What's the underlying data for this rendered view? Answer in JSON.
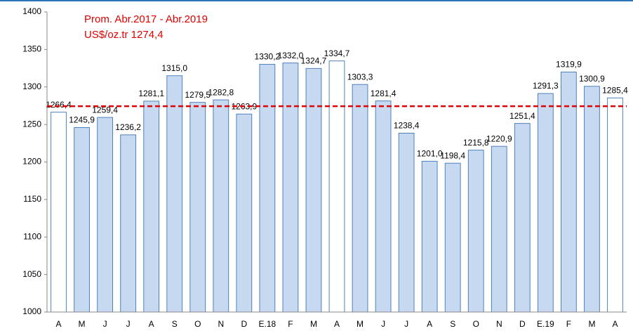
{
  "chart_data": {
    "type": "bar",
    "annotations": [
      "Prom. Abr.2017 - Abr.2019",
      "US$/oz.tr 1274,4"
    ],
    "categories": [
      "A",
      "M",
      "J",
      "J",
      "A",
      "S",
      "O",
      "N",
      "D",
      "E.18",
      "F",
      "M",
      "A",
      "M",
      "J",
      "J",
      "A",
      "S",
      "O",
      "N",
      "D",
      "E.19",
      "F",
      "M",
      "A"
    ],
    "values": [
      1266.4,
      1245.9,
      1259.4,
      1236.2,
      1281.1,
      1315.0,
      1279.5,
      1282.8,
      1263.9,
      1330.2,
      1332.0,
      1324.7,
      1334.7,
      1303.3,
      1281.4,
      1238.4,
      1201.0,
      1198.4,
      1215.8,
      1220.9,
      1251.4,
      1291.3,
      1319.9,
      1300.9,
      1285.4
    ],
    "value_labels": [
      "1266,4",
      "1245,9",
      "1259,4",
      "1236,2",
      "1281,1",
      "1315,0",
      "1279,5",
      "1282,8",
      "1263,9",
      "1330,2",
      "1332,0",
      "1324,7",
      "1334,7",
      "1303,3",
      "1281,4",
      "1238,4",
      "1201,0",
      "1198,4",
      "1215,8",
      "1220,9",
      "1251,4",
      "1291,3",
      "1319,9",
      "1300,9",
      "1285,4"
    ],
    "colors": [
      "#ffffff",
      "#c6d9f1",
      "#c6d9f1",
      "#c6d9f1",
      "#c6d9f1",
      "#c6d9f1",
      "#c6d9f1",
      "#c6d9f1",
      "#c6d9f1",
      "#c6d9f1",
      "#c6d9f1",
      "#c6d9f1",
      "#ffffff",
      "#c6d9f1",
      "#c6d9f1",
      "#c6d9f1",
      "#c6d9f1",
      "#c6d9f1",
      "#c6d9f1",
      "#c6d9f1",
      "#c6d9f1",
      "#c6d9f1",
      "#c6d9f1",
      "#c6d9f1",
      "#ffffff"
    ],
    "edge_color": "#4f81bd",
    "reference_line": {
      "value": 1274.4,
      "color": "#e00000"
    },
    "ylim": [
      1000,
      1400
    ],
    "yticks": [
      1000,
      1050,
      1100,
      1150,
      1200,
      1250,
      1300,
      1350,
      1400
    ],
    "grid": false
  }
}
